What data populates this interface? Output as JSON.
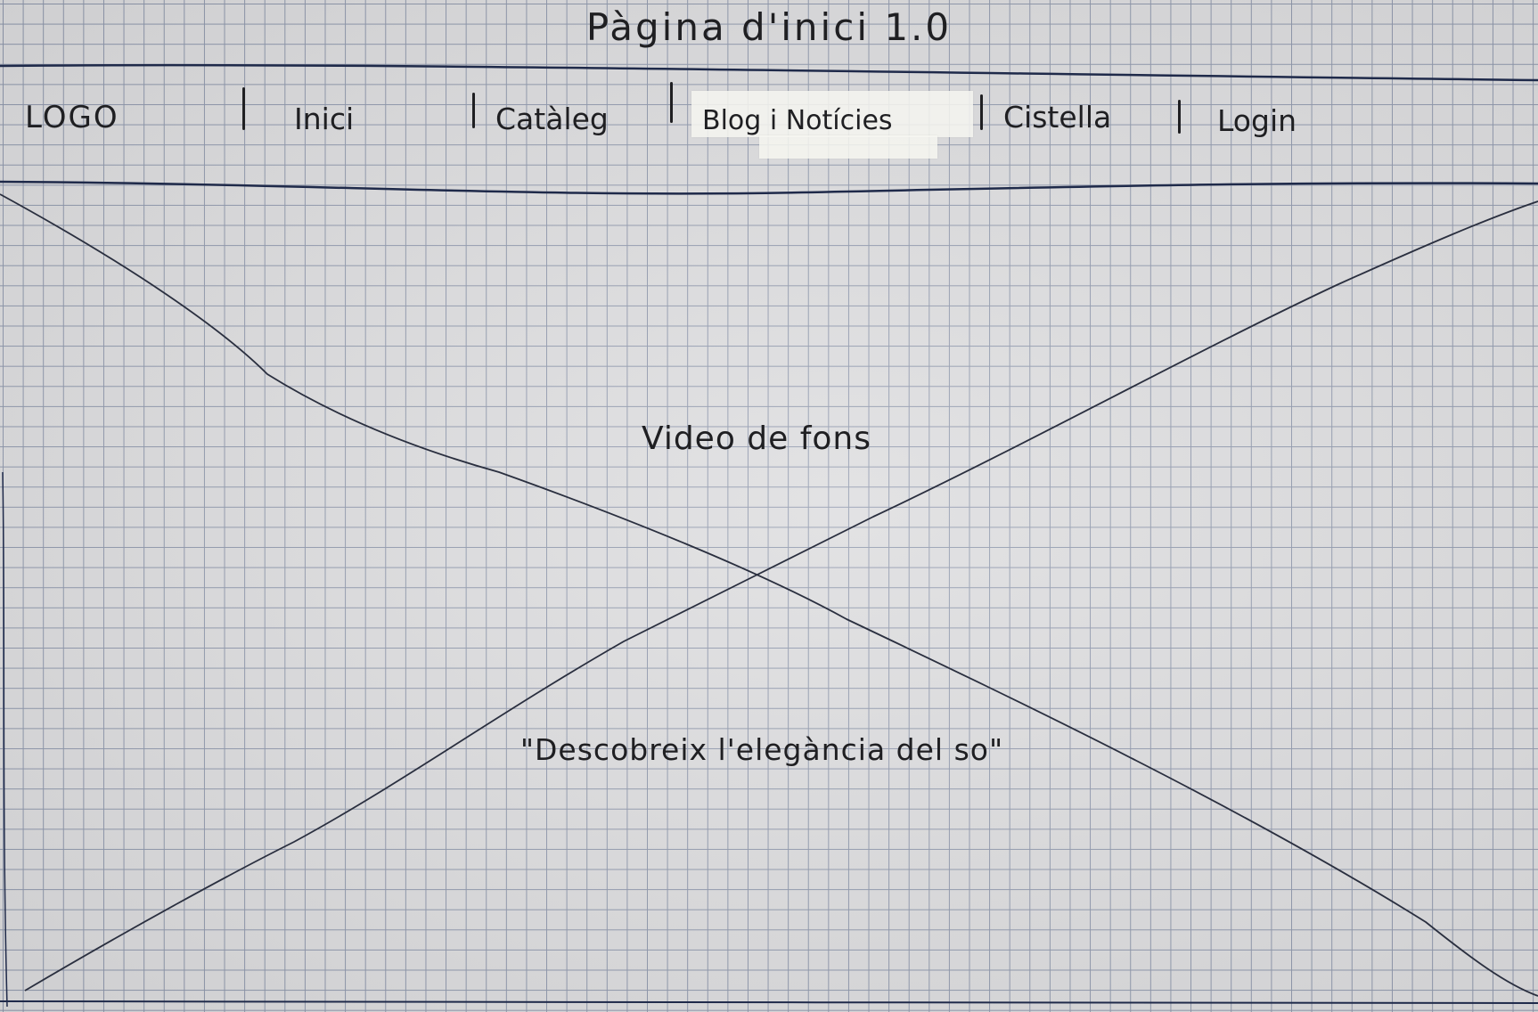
{
  "page": {
    "title": "Pàgina d'inici 1.0"
  },
  "navbar": {
    "logo": "LOGO",
    "items": [
      {
        "label": "Inici"
      },
      {
        "label": "Catàleg"
      },
      {
        "label": "Blog i Notícies"
      },
      {
        "label": "Cistella"
      },
      {
        "label": "Login"
      }
    ]
  },
  "hero": {
    "background_label": "Video de fons",
    "tagline": "\"Descobreix l'elegància del so\"",
    "placeholder_type": "crossed-box"
  },
  "colors": {
    "paper": "#dcdcde",
    "grid": "#8d96ab",
    "ink": "#1f1f22"
  }
}
